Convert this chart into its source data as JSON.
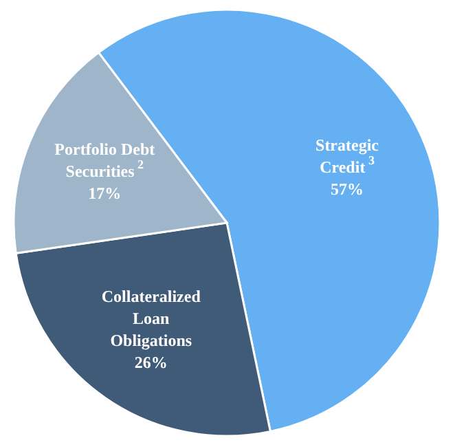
{
  "chart_data": {
    "type": "pie",
    "categories": [
      "Strategic Credit$^{3}$",
      "Collateralized Loan Obligations",
      "Portfolio Debt Securities$^{2}$"
    ],
    "values": [
      57,
      26,
      17
    ],
    "value_labels": [
      "57%",
      "26%",
      "17%"
    ],
    "colors": [
      "#64b0f2",
      "#3f5b78",
      "#9fb5ca"
    ]
  }
}
